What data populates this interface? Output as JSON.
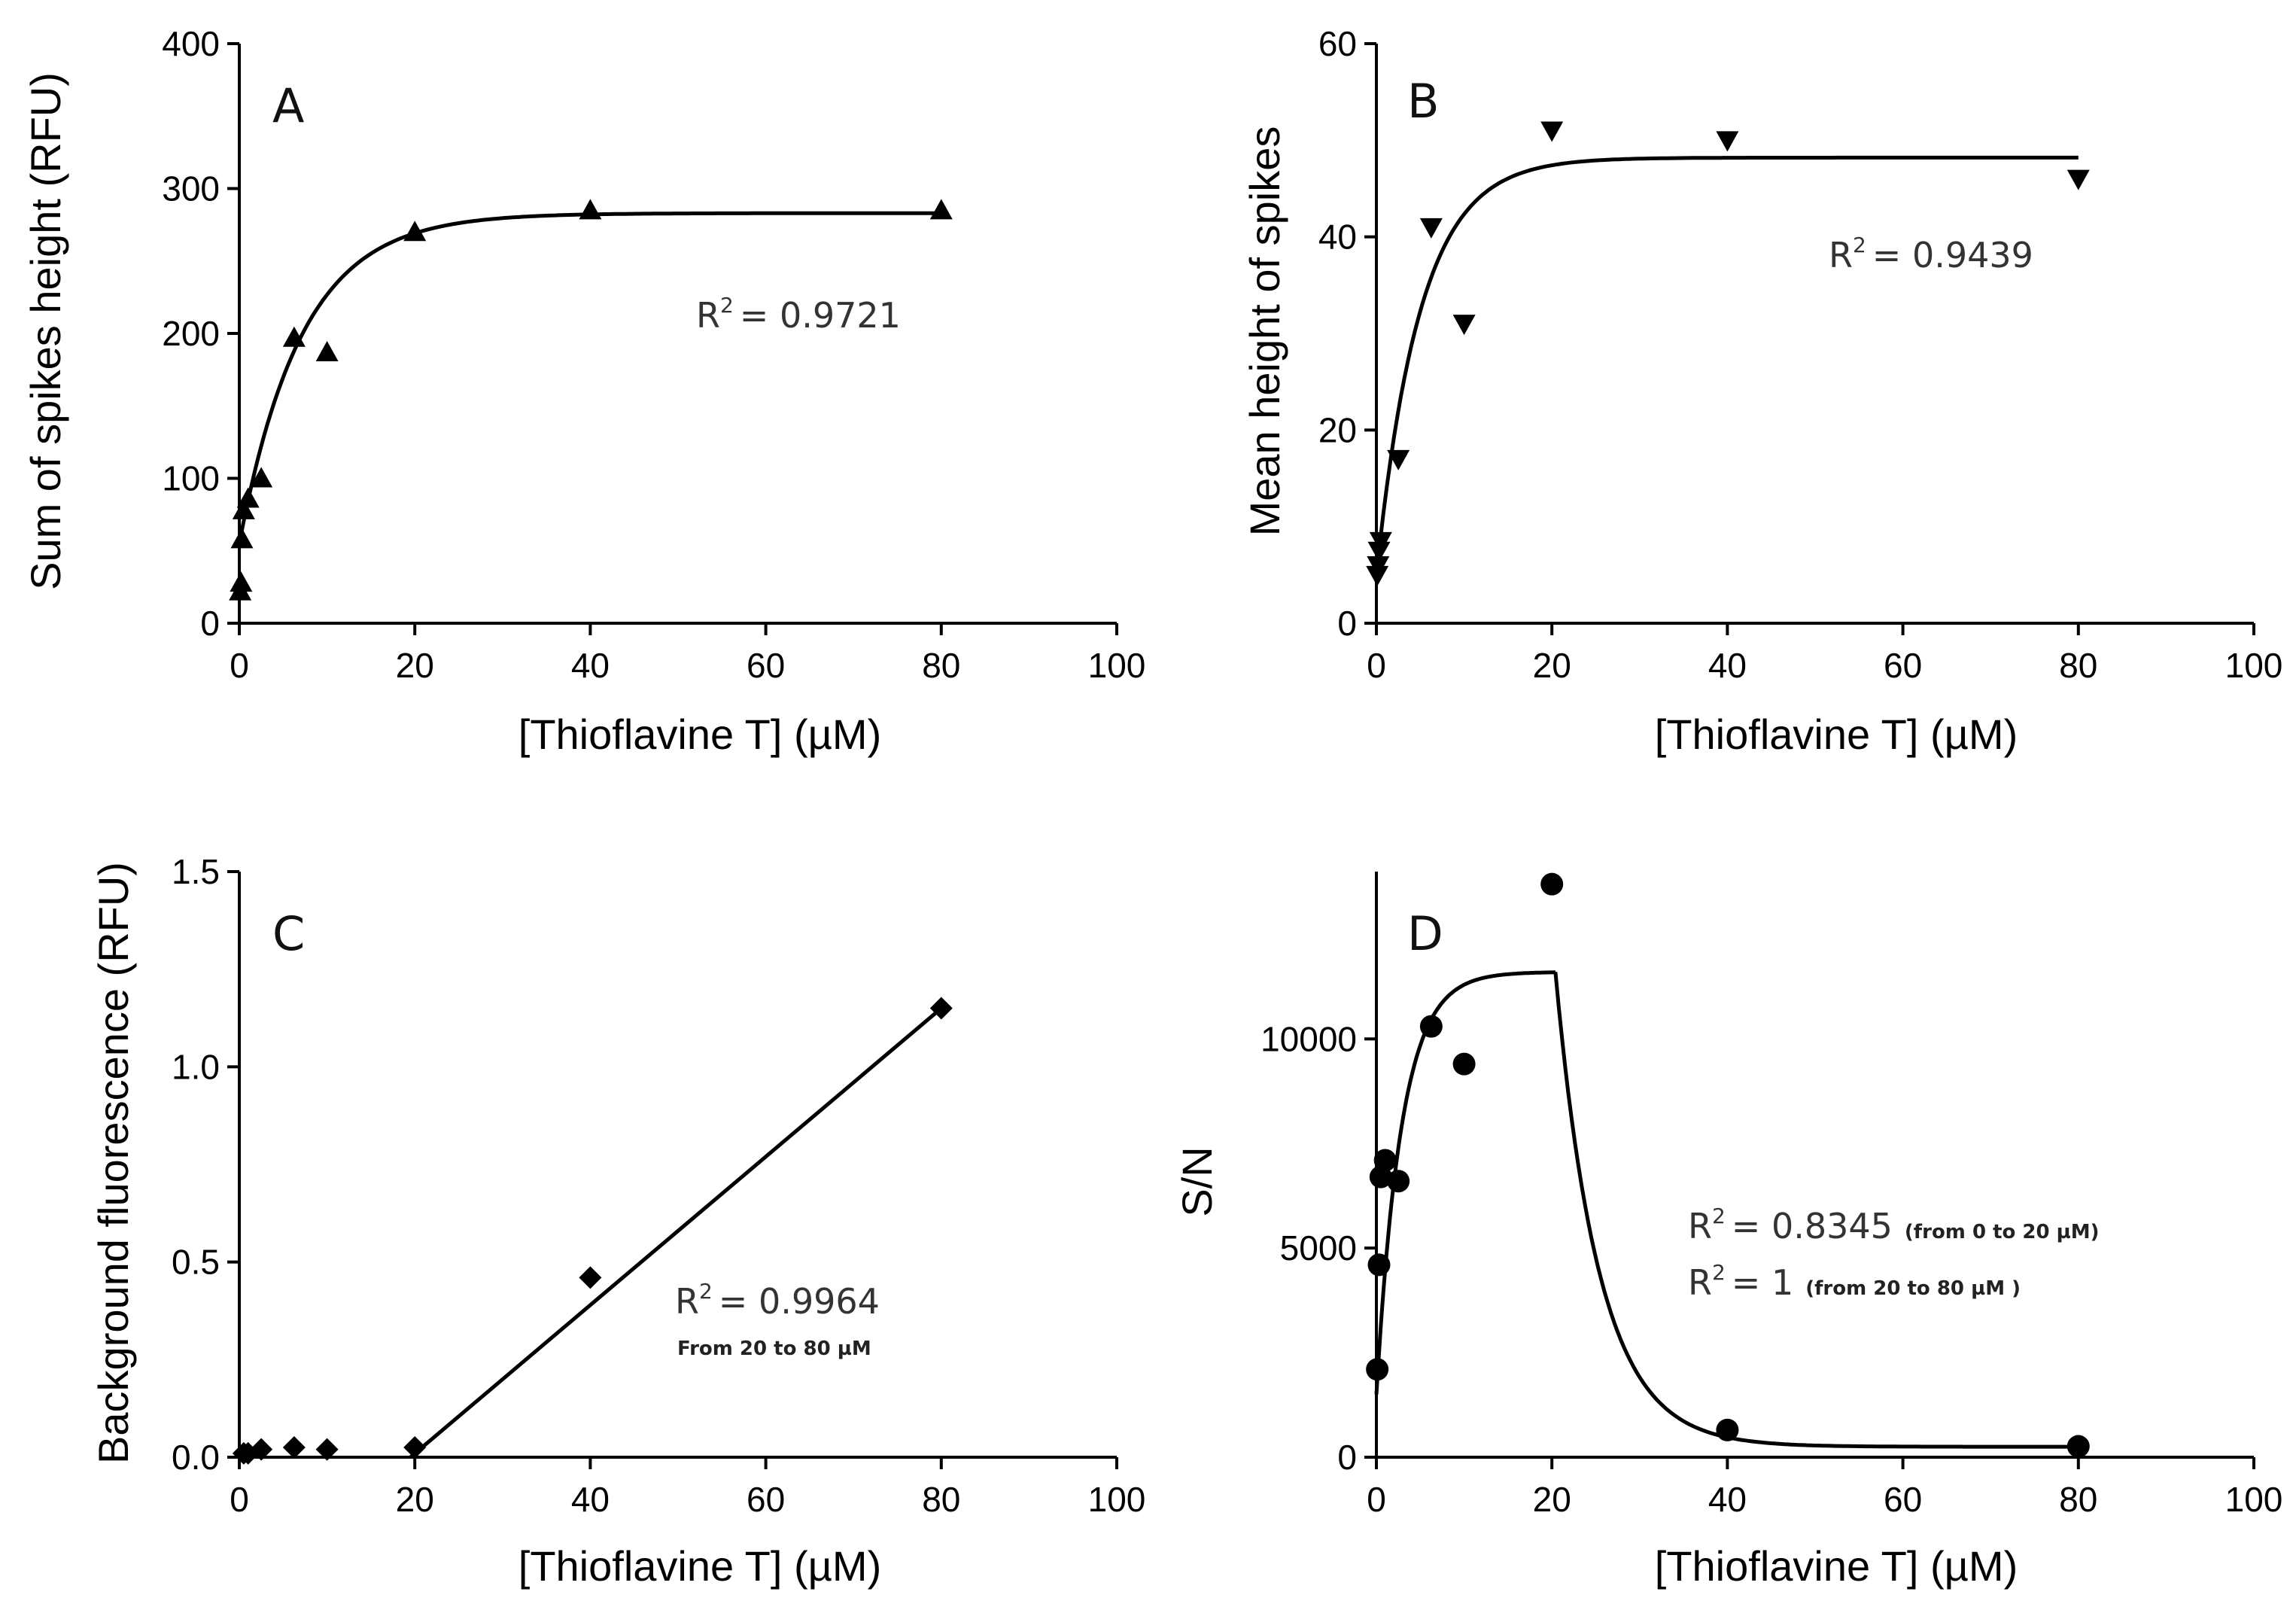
{
  "colors": {
    "ink": "#000000",
    "text": "#333333",
    "background": "#ffffff"
  },
  "chart_data": [
    {
      "id": "A",
      "type": "scatter",
      "panel_label": "A",
      "marker": "triangle-up",
      "xlabel": "[Thioflavine T] (µM)",
      "ylabel": "Sum of spikes height (RFU)",
      "xlim": [
        0,
        100
      ],
      "ylim": [
        0,
        400
      ],
      "xticks": [
        0,
        20,
        40,
        60,
        80,
        100
      ],
      "yticks": [
        0,
        100,
        200,
        300,
        400
      ],
      "ytick_labels": [
        "0",
        "100",
        "200",
        "300",
        "400"
      ],
      "points": [
        [
          0.1,
          22
        ],
        [
          0.2,
          28
        ],
        [
          0.3,
          58
        ],
        [
          0.5,
          78
        ],
        [
          1,
          86
        ],
        [
          2.5,
          100
        ],
        [
          6.25,
          197
        ],
        [
          10,
          187
        ],
        [
          20,
          270
        ],
        [
          40,
          285
        ],
        [
          80,
          285
        ]
      ],
      "fit": {
        "model": "exp_assoc",
        "y0": 55,
        "ymax": 283,
        "k": 0.14,
        "x_from": 0,
        "x_to": 80
      },
      "annotation": {
        "r2_label": "R",
        "r2_exp": "2",
        "r2_value": "= 0.9721"
      }
    },
    {
      "id": "B",
      "type": "scatter",
      "panel_label": "B",
      "marker": "triangle-down",
      "xlabel": "[Thioflavine T] (µM)",
      "ylabel": "Mean height of spikes",
      "xlim": [
        0,
        100
      ],
      "ylim": [
        0,
        60
      ],
      "xticks": [
        0,
        20,
        40,
        60,
        80,
        100
      ],
      "yticks": [
        0,
        20,
        40,
        60
      ],
      "ytick_labels": [
        "0",
        "20",
        "40",
        "60"
      ],
      "points": [
        [
          0.1,
          5
        ],
        [
          0.2,
          6
        ],
        [
          0.3,
          7.5
        ],
        [
          0.5,
          8.5
        ],
        [
          2.5,
          17
        ],
        [
          6.25,
          41
        ],
        [
          10,
          31
        ],
        [
          20,
          51
        ],
        [
          40,
          50
        ],
        [
          80,
          46
        ]
      ],
      "fit": {
        "model": "exp_assoc",
        "y0": 5,
        "ymax": 48.2,
        "k": 0.2,
        "x_from": 0,
        "x_to": 80
      },
      "annotation": {
        "r2_label": "R",
        "r2_exp": "2",
        "r2_value": "= 0.9439"
      }
    },
    {
      "id": "C",
      "type": "scatter",
      "panel_label": "C",
      "marker": "diamond",
      "xlabel": "[Thioflavine T] (µM)",
      "ylabel": "Background fluorescence (RFU)",
      "xlim": [
        0,
        100
      ],
      "ylim": [
        0,
        1.5
      ],
      "xticks": [
        0,
        20,
        40,
        60,
        80,
        100
      ],
      "yticks": [
        0,
        0.5,
        1.0,
        1.5
      ],
      "ytick_labels": [
        "0.0",
        "0.5",
        "1.0",
        "1.5"
      ],
      "points": [
        [
          0.5,
          0.01
        ],
        [
          1,
          0.01
        ],
        [
          2.5,
          0.02
        ],
        [
          6.25,
          0.025
        ],
        [
          10,
          0.02
        ],
        [
          20,
          0.025
        ],
        [
          40,
          0.46
        ],
        [
          80,
          1.15
        ]
      ],
      "fit": {
        "model": "linear",
        "points": [
          [
            19.5,
            0.0
          ],
          [
            80,
            1.15
          ]
        ]
      },
      "annotation": {
        "r2_label": "R",
        "r2_exp": "2",
        "r2_value": "= 0.9964",
        "note": "From 20 to 80 µM"
      }
    },
    {
      "id": "D",
      "type": "scatter",
      "panel_label": "D",
      "marker": "circle",
      "xlabel": "[Thioflavine T] (µM)",
      "ylabel": "S/N",
      "xlim": [
        0,
        100
      ],
      "ylim": [
        0,
        14000
      ],
      "xticks": [
        0,
        20,
        40,
        60,
        80,
        100
      ],
      "yticks": [
        0,
        5000,
        10000
      ],
      "ytick_labels": [
        "0",
        "5000",
        "10000"
      ],
      "points": [
        [
          0.1,
          2100
        ],
        [
          0.3,
          4600
        ],
        [
          0.5,
          6700
        ],
        [
          1,
          7100
        ],
        [
          2.5,
          6600
        ],
        [
          6.25,
          10300
        ],
        [
          10,
          9400
        ],
        [
          20,
          13700
        ],
        [
          40,
          650
        ],
        [
          80,
          260
        ]
      ],
      "fit": {
        "model": "piecewise",
        "rise": {
          "y0": 1500,
          "ymax": 11600,
          "k": 0.35,
          "x_from": 0,
          "x_to": 20.4
        },
        "decay": {
          "y_start": 11600,
          "plateau": 250,
          "k": 0.2,
          "x_from": 20.4,
          "x_to": 80
        }
      },
      "annotation": {
        "r2_label": "R",
        "r2_exp": "2",
        "r2_value": "= 0.8345",
        "note": "(from 0 to 20 µM)",
        "r2b_value": "= 1",
        "note_b": "(from 20 to 80 µM  )"
      }
    }
  ]
}
